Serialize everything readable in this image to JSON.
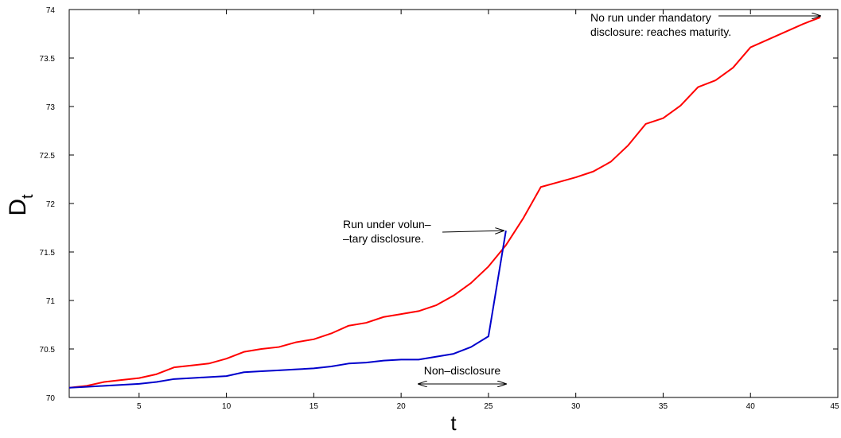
{
  "chart_data": {
    "type": "line",
    "title": "",
    "xlabel": "t",
    "ylabel_main": "D",
    "ylabel_sub": "t",
    "xlim": [
      1,
      45
    ],
    "ylim": [
      70,
      74
    ],
    "x_ticks": [
      5,
      10,
      15,
      20,
      25,
      30,
      35,
      40,
      45
    ],
    "x_tick_labels": [
      "5",
      "10",
      "15",
      "20",
      "25",
      "30",
      "35",
      "40",
      "45"
    ],
    "y_ticks": [
      70,
      70.5,
      71,
      71.5,
      72,
      72.5,
      73,
      73.5,
      74
    ],
    "y_tick_labels": [
      "70",
      "70.5",
      "71",
      "71.5",
      "72",
      "72.5",
      "73",
      "73.5",
      "74"
    ],
    "grid": false,
    "series": [
      {
        "color": "#ff0000",
        "x": [
          1,
          2,
          3,
          4,
          5,
          6,
          7,
          8,
          9,
          10,
          11,
          12,
          13,
          14,
          15,
          16,
          17,
          18,
          19,
          20,
          21,
          22,
          23,
          24,
          25,
          26,
          27,
          28,
          29,
          30,
          31,
          32,
          33,
          34,
          35,
          36,
          37,
          38,
          39,
          40,
          41,
          42,
          43,
          44
        ],
        "y": [
          70.1,
          70.12,
          70.16,
          70.18,
          70.2,
          70.24,
          70.31,
          70.33,
          70.35,
          70.4,
          70.47,
          70.5,
          70.52,
          70.57,
          70.6,
          70.66,
          70.74,
          70.77,
          70.83,
          70.86,
          70.89,
          70.95,
          71.05,
          71.18,
          71.35,
          71.57,
          71.85,
          72.17,
          72.22,
          72.27,
          72.33,
          72.43,
          72.6,
          72.82,
          72.88,
          73.01,
          73.2,
          73.27,
          73.4,
          73.61,
          73.69,
          73.77,
          73.85,
          73.92
        ]
      },
      {
        "color": "#0000cc",
        "x": [
          1,
          2,
          3,
          4,
          5,
          6,
          7,
          8,
          9,
          10,
          11,
          12,
          13,
          14,
          15,
          16,
          17,
          18,
          19,
          20,
          21,
          22,
          23,
          24,
          25,
          26
        ],
        "y": [
          70.1,
          70.11,
          70.12,
          70.13,
          70.14,
          70.16,
          70.19,
          70.2,
          70.21,
          70.22,
          70.26,
          70.27,
          70.28,
          70.29,
          70.3,
          70.32,
          70.35,
          70.36,
          70.38,
          70.39,
          70.39,
          70.42,
          70.45,
          70.52,
          70.63,
          71.72
        ]
      }
    ],
    "annotations": [
      {
        "name": "run-under-voluntary",
        "lines": [
          "Run under volun–",
          "–tary disclosure."
        ],
        "arrow_target": [
          26,
          71.72
        ]
      },
      {
        "name": "no-run-mandatory",
        "lines": [
          "No run under mandatory",
          "disclosure: reaches maturity."
        ],
        "arrow_target": [
          44,
          73.92
        ]
      },
      {
        "name": "non-disclosure",
        "lines": [
          "Non–disclosure"
        ],
        "span_x": [
          21,
          26
        ],
        "span_y": 70.12
      }
    ]
  }
}
